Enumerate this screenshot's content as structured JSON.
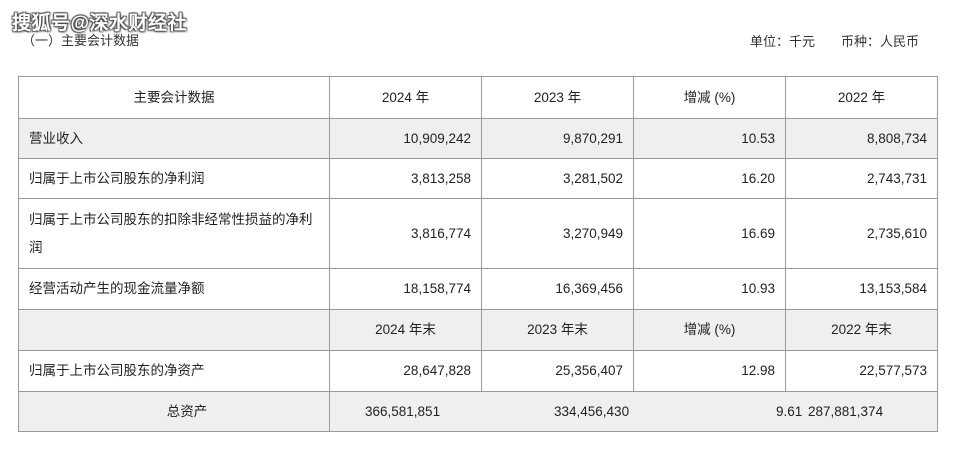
{
  "watermark": "搜狐号@深水财经社",
  "section_title": "（一）主要会计数据",
  "unit_label": "单位：千元",
  "currency_label": "币种：人民币",
  "header": [
    "主要会计数据",
    "2024 年",
    "2023 年",
    "增减 (%)",
    "2022 年"
  ],
  "rows": [
    {
      "label": "营业收入",
      "values": [
        "10,909,242",
        "9,870,291",
        "10.53",
        "8,808,734"
      ]
    },
    {
      "label": "归属于上市公司股东的净利润",
      "values": [
        "3,813,258",
        "3,281,502",
        "16.20",
        "2,743,731"
      ]
    },
    {
      "label": "归属于上市公司股东的扣除非经常性损益的净利润",
      "values": [
        "3,816,774",
        "3,270,949",
        "16.69",
        "2,735,610"
      ]
    },
    {
      "label": "经营活动产生的现金流量净额",
      "values": [
        "18,158,774",
        "16,369,456",
        "10.93",
        "13,153,584"
      ]
    }
  ],
  "header2": [
    "",
    "2024 年末",
    "2023 年末",
    "增减 (%)",
    "2022 年末"
  ],
  "rows2": [
    {
      "label": "归属于上市公司股东的净资产",
      "values": [
        "28,647,828",
        "25,356,407",
        "12.98",
        "22,577,573"
      ]
    }
  ],
  "total": {
    "label": "总资产",
    "values": [
      "366,581,851",
      "334,456,430",
      "9.61",
      "287,881,374"
    ]
  }
}
